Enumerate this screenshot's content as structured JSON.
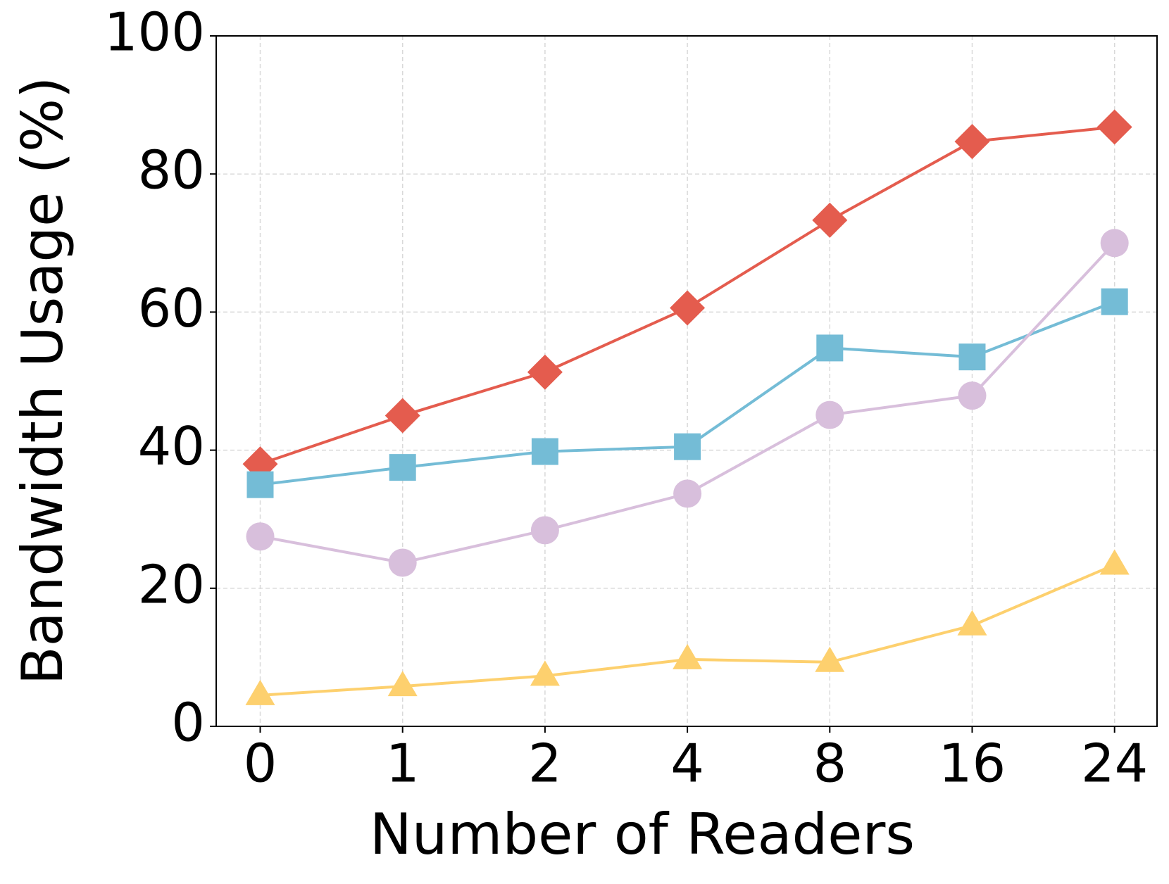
{
  "chart_data": {
    "type": "line",
    "x_label": "Number of Readers",
    "y_label": "Bandwidth Usage (%)",
    "categories": [
      "0",
      "1",
      "2",
      "4",
      "8",
      "16",
      "24"
    ],
    "series": [
      {
        "color": "#e45c4e",
        "marker": "diamond",
        "values": [
          38,
          45,
          51.3,
          60.6,
          73.3,
          84.7,
          86.8
        ]
      },
      {
        "color": "#74bcd6",
        "marker": "square",
        "values": [
          35,
          37.5,
          39.8,
          40.5,
          54.8,
          53.5,
          61.5
        ]
      },
      {
        "color": "#d8bfdc",
        "marker": "circle",
        "values": [
          27.5,
          23.7,
          28.4,
          33.7,
          45.1,
          47.9,
          70
        ]
      },
      {
        "color": "#fdd06e",
        "marker": "triangle",
        "values": [
          4.5,
          5.8,
          7.3,
          9.7,
          9.3,
          14.6,
          23.4
        ]
      }
    ],
    "ylim": [
      0,
      100
    ],
    "yticks": [
      0,
      20,
      40,
      60,
      80,
      100
    ],
    "grid": true
  }
}
